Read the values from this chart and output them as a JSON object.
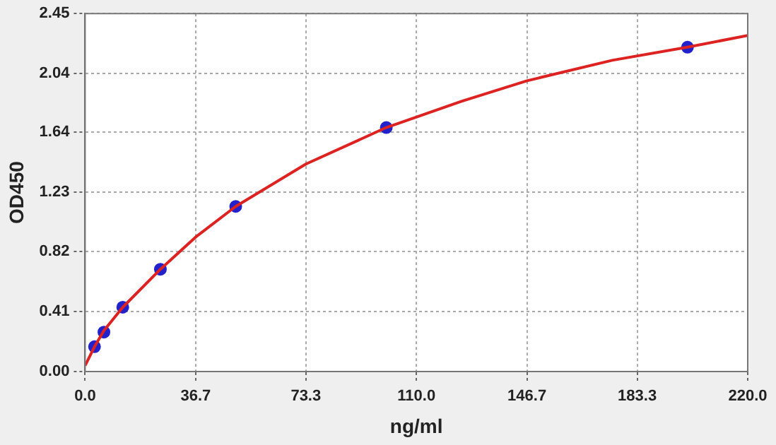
{
  "chart_data": {
    "type": "scatter",
    "xlabel": "ng/ml",
    "ylabel": "OD450",
    "series": [
      {
        "type": "line",
        "color": "#dd2222",
        "x": [
          0,
          3.125,
          6.25,
          12.5,
          25,
          36.7,
          50,
          73.3,
          100,
          125,
          146.7,
          175,
          200,
          220
        ],
        "values": [
          0.04,
          0.17,
          0.28,
          0.44,
          0.7,
          0.92,
          1.13,
          1.42,
          1.67,
          1.85,
          1.99,
          2.13,
          2.22,
          2.3
        ],
        "marker": "none"
      },
      {
        "color": "#2222cc",
        "x": [
          3.125,
          6.25,
          12.5,
          25,
          50,
          100,
          200
        ],
        "values": [
          0.17,
          0.27,
          0.44,
          0.7,
          1.13,
          1.67,
          2.22
        ],
        "marker": "circle"
      }
    ],
    "xlim": [
      0,
      220
    ],
    "xticks": [
      {
        "value": 0,
        "label": "0.0"
      },
      36.7,
      73.3,
      {
        "value": 110,
        "label": "110.0"
      },
      146.7,
      183.3,
      {
        "value": 220,
        "label": "220.0"
      }
    ],
    "ylim": [
      0,
      2.45
    ],
    "yticks": [
      {
        "value": 0,
        "label": "0.00"
      },
      0.41,
      0.82,
      1.23,
      1.64,
      2.04,
      2.45
    ],
    "grid": true,
    "legend": false
  }
}
